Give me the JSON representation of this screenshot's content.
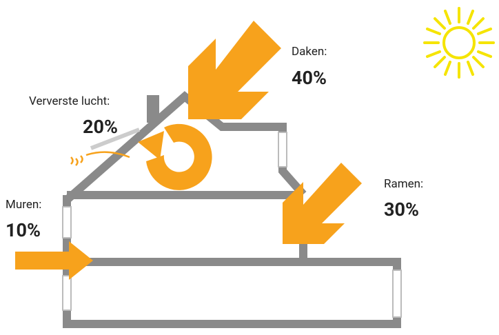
{
  "labels": [
    {
      "name": "Daken:",
      "value": "40%"
    },
    {
      "name": "Ververste lucht:",
      "value": "20%"
    },
    {
      "name": "Ramen:",
      "value": "30%"
    },
    {
      "name": "Muren:",
      "value": "10%"
    }
  ]
}
